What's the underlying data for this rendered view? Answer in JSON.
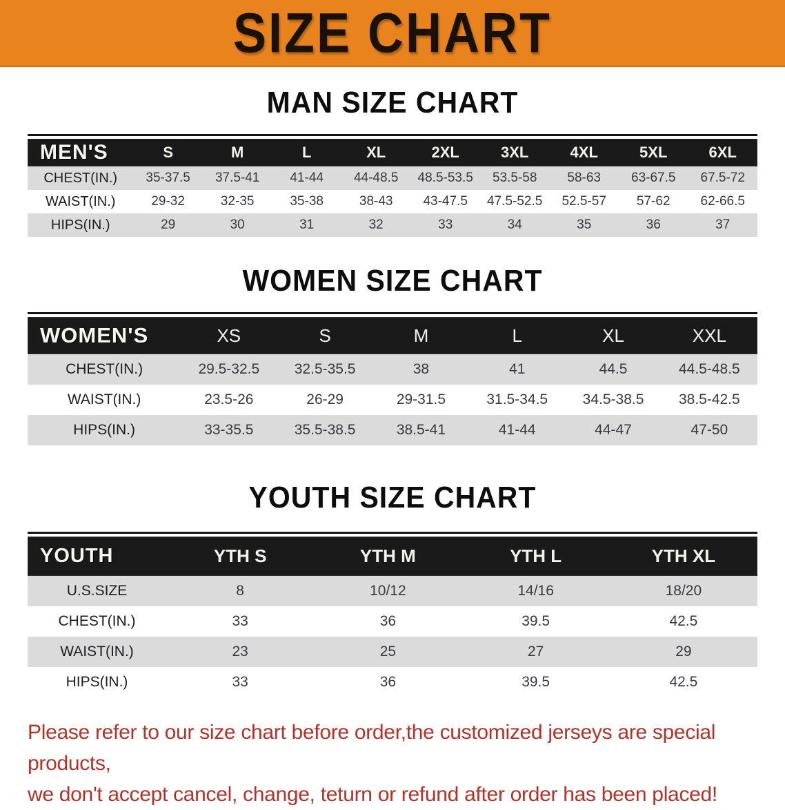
{
  "banner": {
    "title": "SIZE CHART",
    "bg_color": "#E8831E"
  },
  "sections": [
    {
      "id": "men",
      "heading": "MAN SIZE CHART",
      "table": {
        "header_label": "MEN'S",
        "columns": [
          "S",
          "M",
          "L",
          "XL",
          "2XL",
          "3XL",
          "4XL",
          "5XL",
          "6XL"
        ],
        "rows": [
          {
            "label": "CHEST(IN.)",
            "values": [
              "35-37.5",
              "37.5-41",
              "41-44",
              "44-48.5",
              "48.5-53.5",
              "53.5-58",
              "58-63",
              "63-67.5",
              "67.5-72"
            ]
          },
          {
            "label": "WAIST(IN.)",
            "values": [
              "29-32",
              "32-35",
              "35-38",
              "38-43",
              "43-47.5",
              "47.5-52.5",
              "52.5-57",
              "57-62",
              "62-66.5"
            ]
          },
          {
            "label": "HIPS(IN.)",
            "values": [
              "29",
              "30",
              "31",
              "32",
              "33",
              "34",
              "35",
              "36",
              "37"
            ]
          }
        ]
      }
    },
    {
      "id": "women",
      "heading": "WOMEN SIZE CHART",
      "table": {
        "header_label": "WOMEN'S",
        "columns": [
          "XS",
          "S",
          "M",
          "L",
          "XL",
          "XXL"
        ],
        "rows": [
          {
            "label": "CHEST(IN.)",
            "values": [
              "29.5-32.5",
              "32.5-35.5",
              "38",
              "41",
              "44.5",
              "44.5-48.5"
            ]
          },
          {
            "label": "WAIST(IN.)",
            "values": [
              "23.5-26",
              "26-29",
              "29-31.5",
              "31.5-34.5",
              "34.5-38.5",
              "38.5-42.5"
            ]
          },
          {
            "label": "HIPS(IN.)",
            "values": [
              "33-35.5",
              "35.5-38.5",
              "38.5-41",
              "41-44",
              "44-47",
              "47-50"
            ]
          }
        ]
      }
    },
    {
      "id": "youth",
      "heading": "YOUTH SIZE CHART",
      "table": {
        "header_label": "YOUTH",
        "columns": [
          "YTH S",
          "YTH M",
          "YTH L",
          "YTH XL"
        ],
        "rows": [
          {
            "label": "U.S.SIZE",
            "values": [
              "8",
              "10/12",
              "14/16",
              "18/20"
            ]
          },
          {
            "label": "CHEST(IN.)",
            "values": [
              "33",
              "36",
              "39.5",
              "42.5"
            ]
          },
          {
            "label": "WAIST(IN.)",
            "values": [
              "23",
              "25",
              "27",
              "29"
            ]
          },
          {
            "label": "HIPS(IN.)",
            "values": [
              "33",
              "36",
              "39.5",
              "42.5"
            ]
          }
        ]
      }
    }
  ],
  "notice": {
    "line1": "Please refer to our size chart before order,the customized jerseys are special products,",
    "line2": "we don't accept cancel, change, teturn or refund after order has been placed!",
    "color": "#B2322A"
  }
}
